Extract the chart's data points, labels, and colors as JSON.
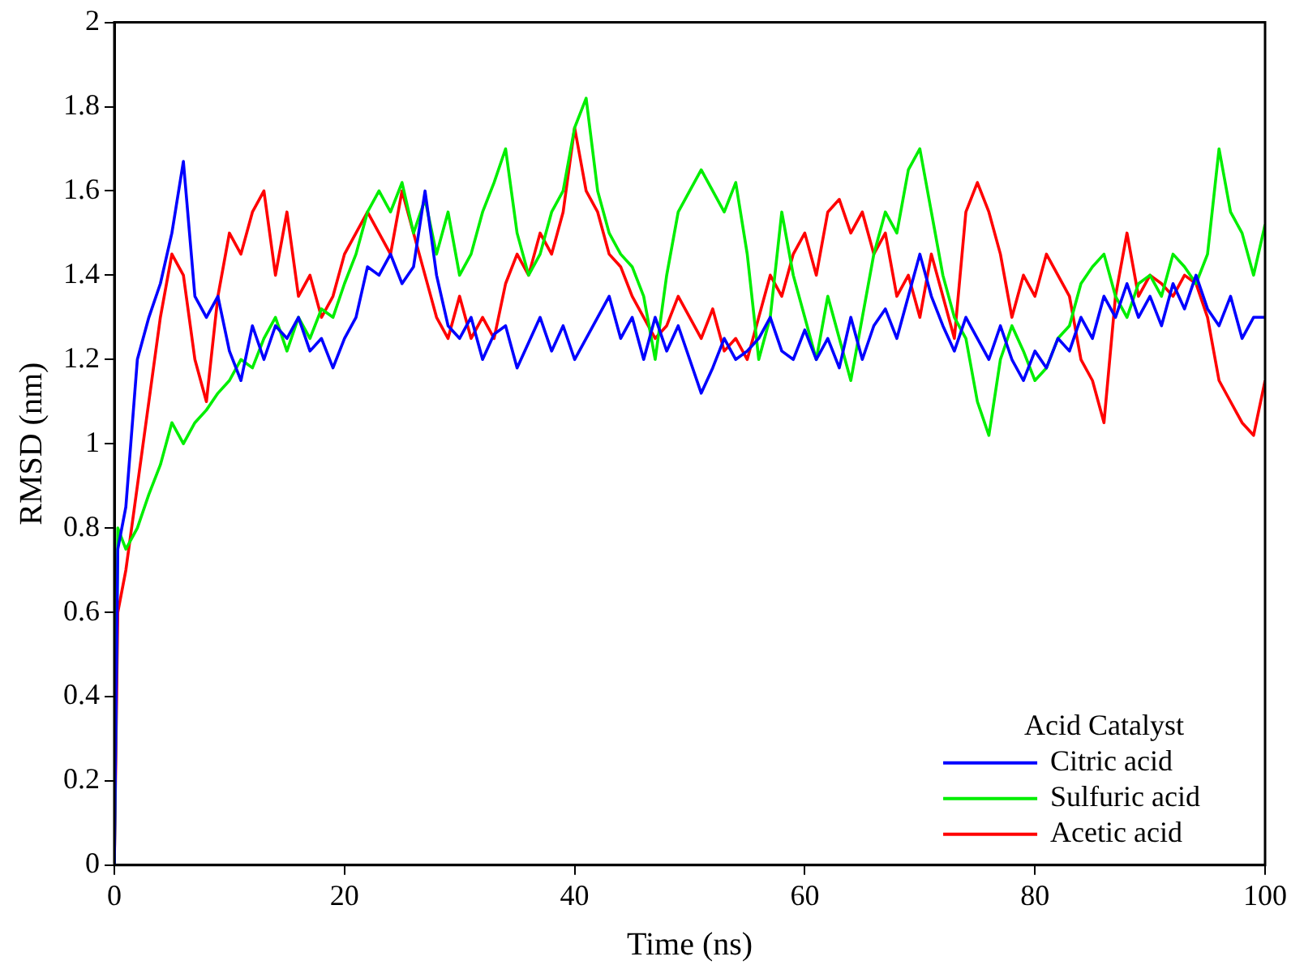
{
  "chart_data": {
    "type": "line",
    "xlabel": "Time (ns)",
    "ylabel": "RMSD (nm)",
    "legend_title": "Acid Catalyst",
    "legend": "bottom right",
    "grid": false,
    "marker": "none",
    "line_style": "solid",
    "xlim": [
      0,
      100
    ],
    "xticks": [
      0,
      20,
      40,
      60,
      80,
      100
    ],
    "ylim": [
      0,
      2
    ],
    "yticks": [
      0,
      0.2,
      0.4,
      0.6,
      0.8,
      1,
      1.2,
      1.4,
      1.6,
      1.8,
      2
    ],
    "x": [
      0,
      0.3,
      1,
      2,
      3,
      4,
      5,
      6,
      7,
      8,
      9,
      10,
      11,
      12,
      13,
      14,
      15,
      16,
      17,
      18,
      19,
      20,
      21,
      22,
      23,
      24,
      25,
      26,
      27,
      28,
      29,
      30,
      31,
      32,
      33,
      34,
      35,
      36,
      37,
      38,
      39,
      40,
      41,
      42,
      43,
      44,
      45,
      46,
      47,
      48,
      49,
      50,
      51,
      52,
      53,
      54,
      55,
      56,
      57,
      58,
      59,
      60,
      61,
      62,
      63,
      64,
      65,
      66,
      67,
      68,
      69,
      70,
      71,
      72,
      73,
      74,
      75,
      76,
      77,
      78,
      79,
      80,
      81,
      82,
      83,
      84,
      85,
      86,
      87,
      88,
      89,
      90,
      91,
      92,
      93,
      94,
      95,
      96,
      97,
      98,
      99,
      100
    ],
    "series": [
      {
        "name": "Citric acid",
        "color": "#0000ff",
        "values": [
          0,
          0.75,
          0.85,
          1.2,
          1.3,
          1.38,
          1.5,
          1.67,
          1.35,
          1.3,
          1.35,
          1.22,
          1.15,
          1.28,
          1.2,
          1.28,
          1.25,
          1.3,
          1.22,
          1.25,
          1.18,
          1.25,
          1.3,
          1.42,
          1.4,
          1.45,
          1.38,
          1.42,
          1.6,
          1.4,
          1.28,
          1.25,
          1.3,
          1.2,
          1.26,
          1.28,
          1.18,
          1.24,
          1.3,
          1.22,
          1.28,
          1.2,
          1.25,
          1.3,
          1.35,
          1.25,
          1.3,
          1.2,
          1.3,
          1.22,
          1.28,
          1.2,
          1.12,
          1.18,
          1.25,
          1.2,
          1.22,
          1.25,
          1.3,
          1.22,
          1.2,
          1.27,
          1.2,
          1.25,
          1.18,
          1.3,
          1.2,
          1.28,
          1.32,
          1.25,
          1.35,
          1.45,
          1.35,
          1.28,
          1.22,
          1.3,
          1.25,
          1.2,
          1.28,
          1.2,
          1.15,
          1.22,
          1.18,
          1.25,
          1.22,
          1.3,
          1.25,
          1.35,
          1.3,
          1.38,
          1.3,
          1.35,
          1.28,
          1.38,
          1.32,
          1.4,
          1.32,
          1.28,
          1.35,
          1.25,
          1.3,
          1.3
        ]
      },
      {
        "name": "Sulfuric acid",
        "color": "#00ee00",
        "values": [
          0,
          0.8,
          0.75,
          0.8,
          0.88,
          0.95,
          1.05,
          1.0,
          1.05,
          1.08,
          1.12,
          1.15,
          1.2,
          1.18,
          1.25,
          1.3,
          1.22,
          1.3,
          1.25,
          1.32,
          1.3,
          1.38,
          1.45,
          1.55,
          1.6,
          1.55,
          1.62,
          1.5,
          1.58,
          1.45,
          1.55,
          1.4,
          1.45,
          1.55,
          1.62,
          1.7,
          1.5,
          1.4,
          1.45,
          1.55,
          1.6,
          1.75,
          1.82,
          1.6,
          1.5,
          1.45,
          1.42,
          1.35,
          1.2,
          1.4,
          1.55,
          1.6,
          1.65,
          1.6,
          1.55,
          1.62,
          1.45,
          1.2,
          1.3,
          1.55,
          1.4,
          1.3,
          1.2,
          1.35,
          1.25,
          1.15,
          1.3,
          1.45,
          1.55,
          1.5,
          1.65,
          1.7,
          1.55,
          1.4,
          1.3,
          1.25,
          1.1,
          1.02,
          1.2,
          1.28,
          1.22,
          1.15,
          1.18,
          1.25,
          1.28,
          1.38,
          1.42,
          1.45,
          1.35,
          1.3,
          1.38,
          1.4,
          1.35,
          1.45,
          1.42,
          1.38,
          1.45,
          1.7,
          1.55,
          1.5,
          1.4,
          1.52
        ]
      },
      {
        "name": "Acetic acid",
        "color": "#ff0000",
        "values": [
          0,
          0.6,
          0.7,
          0.9,
          1.1,
          1.3,
          1.45,
          1.4,
          1.2,
          1.1,
          1.35,
          1.5,
          1.45,
          1.55,
          1.6,
          1.4,
          1.55,
          1.35,
          1.4,
          1.3,
          1.35,
          1.45,
          1.5,
          1.55,
          1.5,
          1.45,
          1.6,
          1.5,
          1.4,
          1.3,
          1.25,
          1.35,
          1.25,
          1.3,
          1.25,
          1.38,
          1.45,
          1.4,
          1.5,
          1.45,
          1.55,
          1.75,
          1.6,
          1.55,
          1.45,
          1.42,
          1.35,
          1.3,
          1.25,
          1.28,
          1.35,
          1.3,
          1.25,
          1.32,
          1.22,
          1.25,
          1.2,
          1.3,
          1.4,
          1.35,
          1.45,
          1.5,
          1.4,
          1.55,
          1.58,
          1.5,
          1.55,
          1.45,
          1.5,
          1.35,
          1.4,
          1.3,
          1.45,
          1.35,
          1.25,
          1.55,
          1.62,
          1.55,
          1.45,
          1.3,
          1.4,
          1.35,
          1.45,
          1.4,
          1.35,
          1.2,
          1.15,
          1.05,
          1.35,
          1.5,
          1.35,
          1.4,
          1.38,
          1.35,
          1.4,
          1.38,
          1.3,
          1.15,
          1.1,
          1.05,
          1.02,
          1.15
        ]
      }
    ]
  }
}
